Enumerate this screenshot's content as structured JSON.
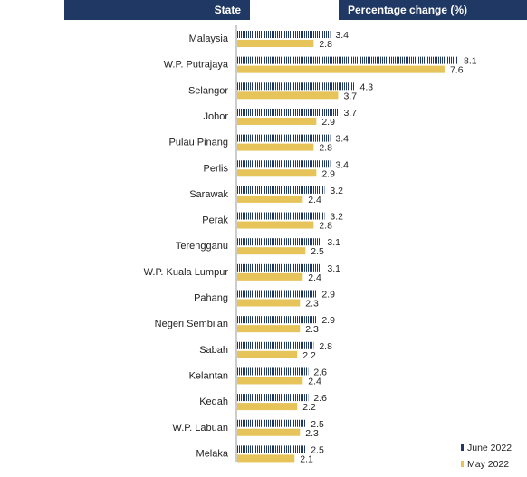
{
  "header": {
    "state_label": "State",
    "pct_label": "Percentage change (%)"
  },
  "colors": {
    "header_bg": "#1f3864",
    "june": "#1f3864",
    "may": "#e6c45a"
  },
  "chart_data": {
    "type": "bar",
    "orientation": "horizontal",
    "categories": [
      "Malaysia",
      "W.P. Putrajaya",
      "Selangor",
      "Johor",
      "Pulau Pinang",
      "Perlis",
      "Sarawak",
      "Perak",
      "Terengganu",
      "W.P. Kuala Lumpur",
      "Pahang",
      "Negeri Sembilan",
      "Sabah",
      "Kelantan",
      "Kedah",
      "W.P. Labuan",
      "Melaka"
    ],
    "series": [
      {
        "name": "June 2022",
        "values": [
          3.4,
          8.1,
          4.3,
          3.7,
          3.4,
          3.4,
          3.2,
          3.2,
          3.1,
          3.1,
          2.9,
          2.9,
          2.8,
          2.6,
          2.6,
          2.5,
          2.5
        ]
      },
      {
        "name": "May 2022",
        "values": [
          2.8,
          7.6,
          3.7,
          2.9,
          2.8,
          2.9,
          2.4,
          2.8,
          2.5,
          2.4,
          2.3,
          2.3,
          2.2,
          2.4,
          2.2,
          2.3,
          2.1
        ]
      }
    ],
    "xlim": [
      0,
      8.1
    ],
    "legend": "bottom-right",
    "grid": false
  }
}
